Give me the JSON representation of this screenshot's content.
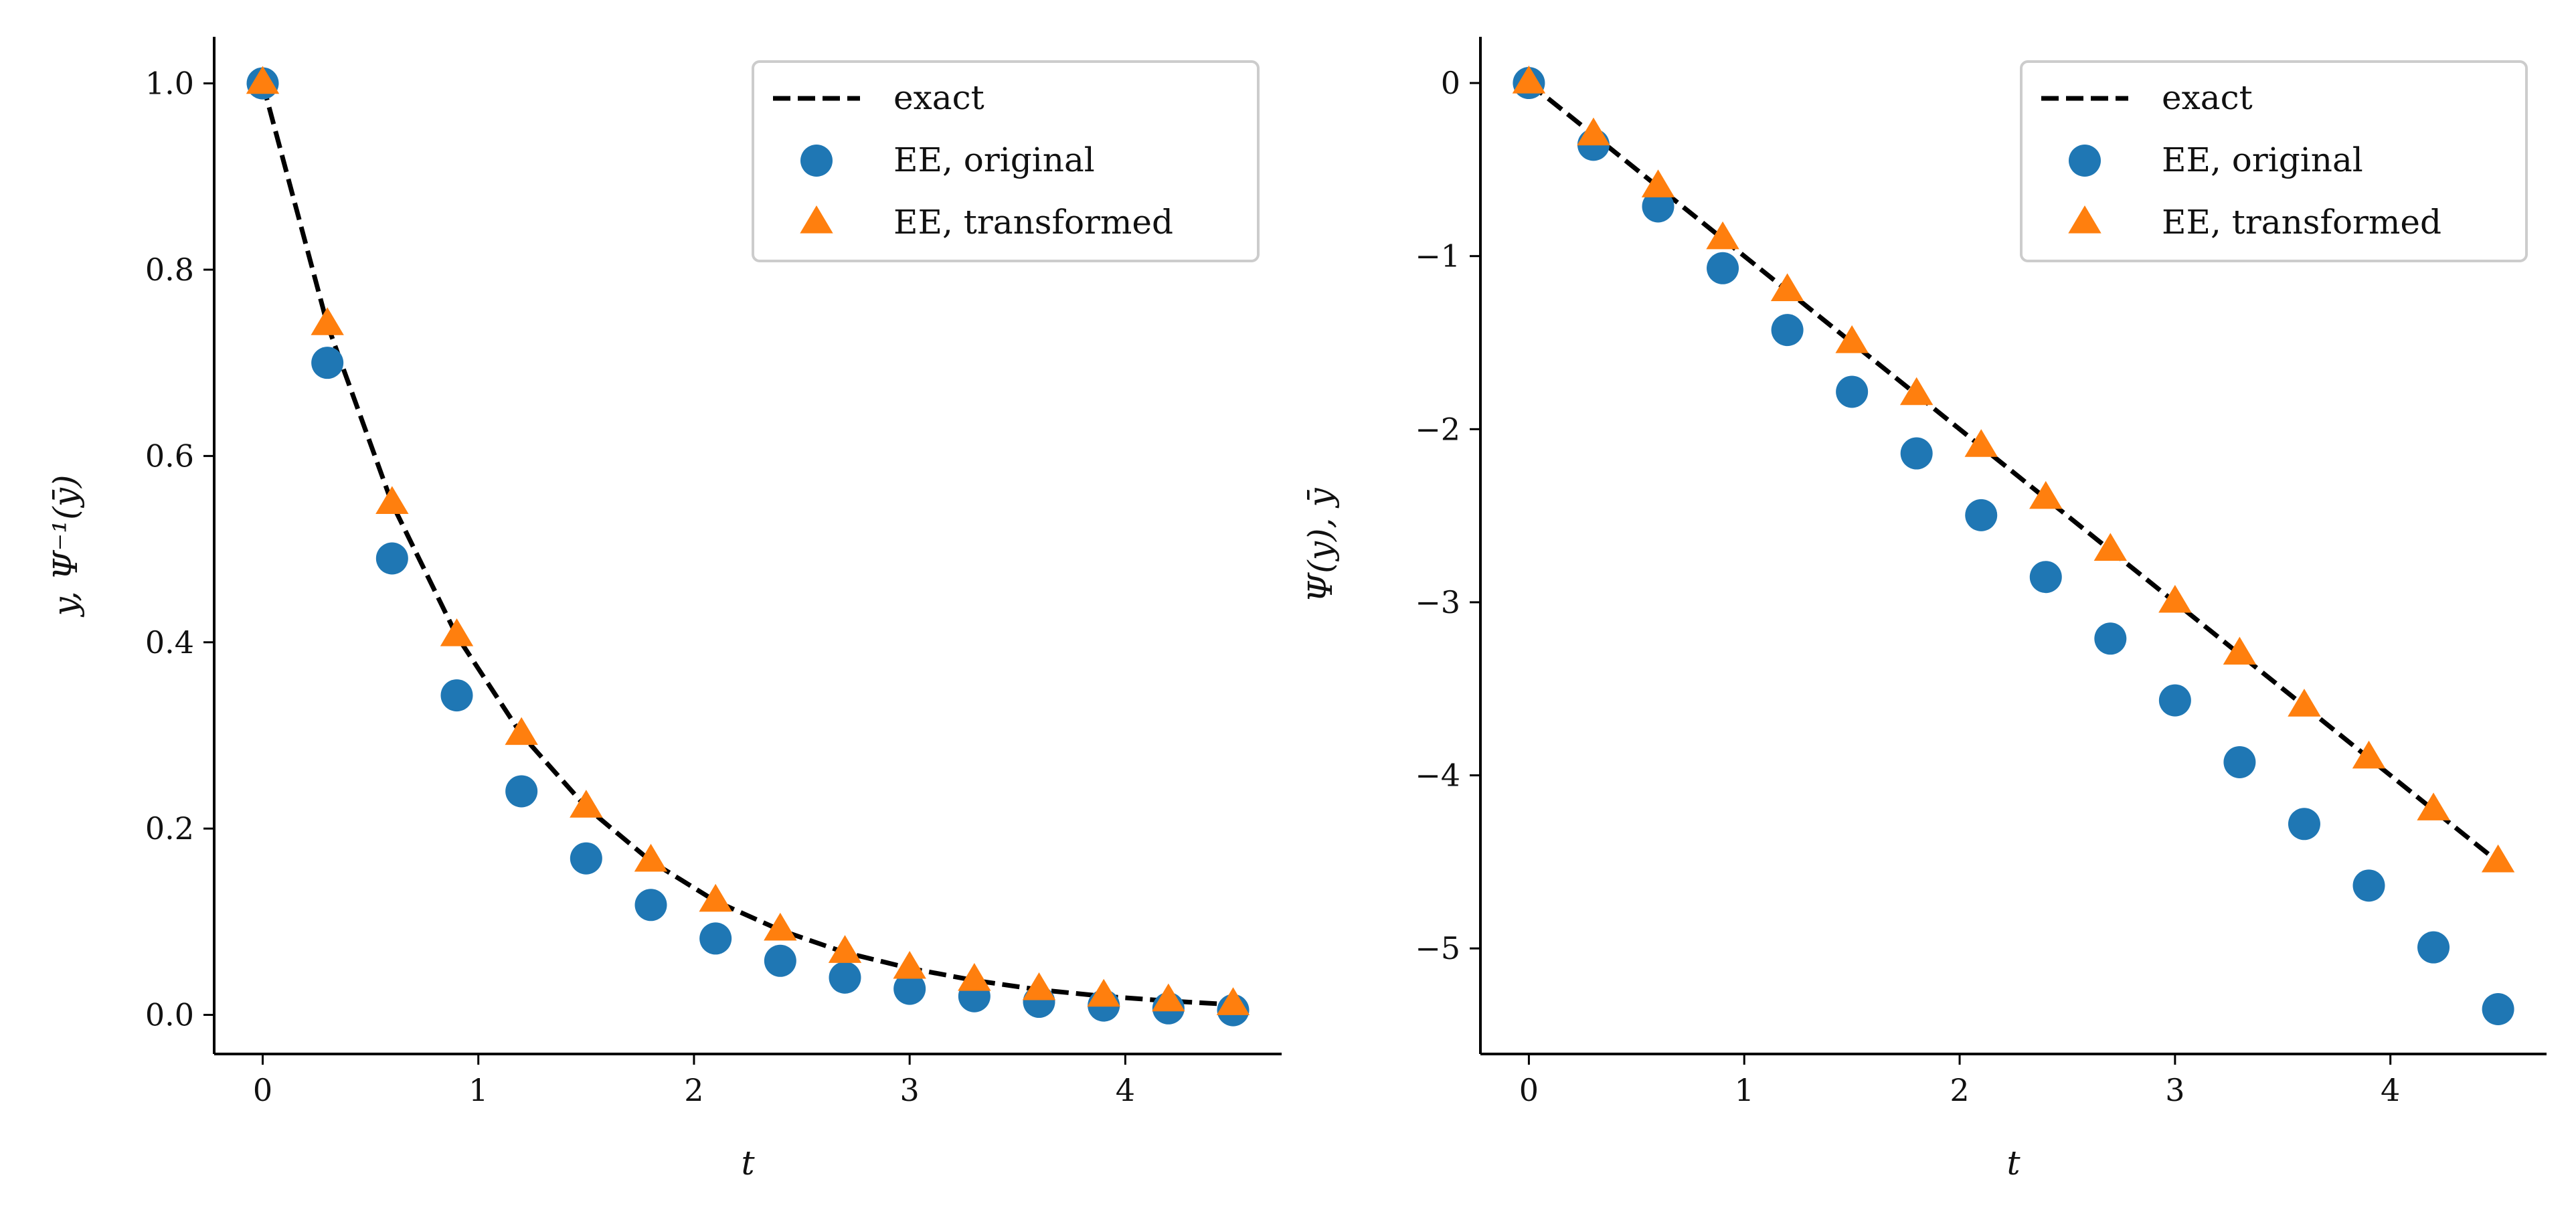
{
  "chart_data": [
    {
      "type": "scatter",
      "title": "",
      "xlabel": "t",
      "ylabel": "y,  Ψ⁻¹(ȳ)",
      "xlim": [
        -0.225,
        4.725
      ],
      "ylim": [
        -0.042,
        1.05
      ],
      "xticks": [
        0,
        1,
        2,
        3,
        4
      ],
      "xtick_labels": [
        "0",
        "1",
        "2",
        "3",
        "4"
      ],
      "yticks": [
        0.0,
        0.2,
        0.4,
        0.6,
        0.8,
        1.0
      ],
      "ytick_labels": [
        "0.0",
        "0.2",
        "0.4",
        "0.6",
        "0.8",
        "1.0"
      ],
      "grid": false,
      "legend_position": "upper-right",
      "x": [
        0,
        0.3,
        0.6,
        0.9,
        1.2,
        1.5,
        1.8,
        2.1,
        2.4,
        2.7,
        3.0,
        3.3,
        3.6,
        3.9,
        4.2,
        4.5
      ],
      "series": [
        {
          "name": "exact",
          "style": "dashed-line",
          "color": "#000000",
          "values": [
            1.0,
            0.741,
            0.549,
            0.407,
            0.301,
            0.223,
            0.165,
            0.122,
            0.091,
            0.067,
            0.05,
            0.037,
            0.027,
            0.02,
            0.015,
            0.011
          ]
        },
        {
          "name": "EE, original",
          "style": "circle",
          "color": "#1f77b4",
          "values": [
            1.0,
            0.7,
            0.49,
            0.343,
            0.24,
            0.168,
            0.118,
            0.082,
            0.058,
            0.04,
            0.028,
            0.02,
            0.014,
            0.01,
            0.007,
            0.005
          ]
        },
        {
          "name": "EE, transformed",
          "style": "triangle",
          "color": "#ff7f0e",
          "values": [
            1.0,
            0.741,
            0.549,
            0.407,
            0.301,
            0.223,
            0.165,
            0.122,
            0.091,
            0.067,
            0.05,
            0.037,
            0.027,
            0.02,
            0.015,
            0.011
          ]
        }
      ]
    },
    {
      "type": "scatter",
      "title": "",
      "xlabel": "t",
      "ylabel": "Ψ(y),  ȳ",
      "xlim": [
        -0.225,
        4.725
      ],
      "ylim": [
        -5.61,
        0.267
      ],
      "xticks": [
        0,
        1,
        2,
        3,
        4
      ],
      "xtick_labels": [
        "0",
        "1",
        "2",
        "3",
        "4"
      ],
      "yticks": [
        0,
        -1,
        -2,
        -3,
        -4,
        -5
      ],
      "ytick_labels": [
        "0",
        "−1",
        "−2",
        "−3",
        "−4",
        "−5"
      ],
      "grid": false,
      "legend_position": "upper-right",
      "x": [
        0,
        0.3,
        0.6,
        0.9,
        1.2,
        1.5,
        1.8,
        2.1,
        2.4,
        2.7,
        3.0,
        3.3,
        3.6,
        3.9,
        4.2,
        4.5
      ],
      "series": [
        {
          "name": "exact",
          "style": "dashed-line",
          "color": "#000000",
          "values": [
            0,
            -0.3,
            -0.6,
            -0.9,
            -1.2,
            -1.5,
            -1.8,
            -2.1,
            -2.4,
            -2.7,
            -3.0,
            -3.3,
            -3.6,
            -3.9,
            -4.2,
            -4.5
          ]
        },
        {
          "name": "EE, original",
          "style": "circle",
          "color": "#1f77b4",
          "values": [
            0,
            -0.357,
            -0.713,
            -1.07,
            -1.427,
            -1.784,
            -2.14,
            -2.497,
            -2.854,
            -3.21,
            -3.567,
            -3.924,
            -4.281,
            -4.637,
            -4.994,
            -5.351
          ]
        },
        {
          "name": "EE, transformed",
          "style": "triangle",
          "color": "#ff7f0e",
          "values": [
            0,
            -0.3,
            -0.6,
            -0.9,
            -1.2,
            -1.5,
            -1.8,
            -2.1,
            -2.4,
            -2.7,
            -3.0,
            -3.3,
            -3.6,
            -3.9,
            -4.2,
            -4.5
          ]
        }
      ]
    }
  ]
}
